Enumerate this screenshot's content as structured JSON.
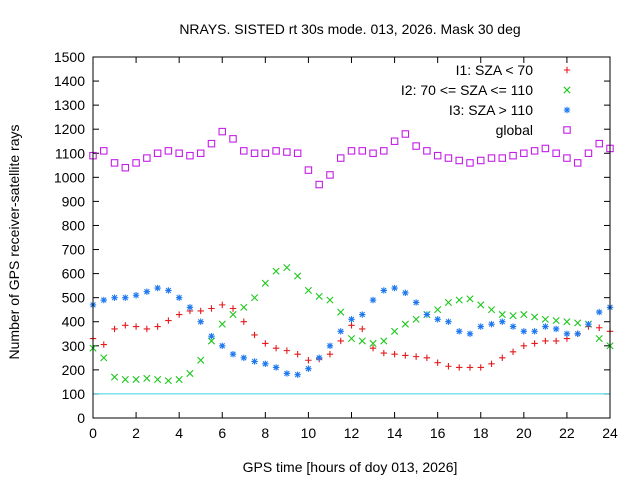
{
  "chart_data": {
    "type": "scatter",
    "title": "NRAYS. SISTED rt 30s mode. 013, 2026. Mask 30 deg",
    "xlabel": "GPS time [hours of doy 013, 2026]",
    "ylabel": "Number of GPS receiver-satellite rays",
    "xlim": [
      0,
      24
    ],
    "ylim": [
      0,
      1500
    ],
    "xticks": [
      0,
      2,
      4,
      6,
      8,
      10,
      12,
      14,
      16,
      18,
      20,
      22,
      24
    ],
    "yticks": [
      0,
      100,
      200,
      300,
      400,
      500,
      600,
      700,
      800,
      900,
      1000,
      1100,
      1200,
      1300,
      1400,
      1500
    ],
    "grid": false,
    "legend_position": "top-right",
    "reference_line": {
      "y": 100,
      "color": "#3fd0e0"
    },
    "series": [
      {
        "name": "I1: SZA < 70",
        "marker": "+",
        "color": "#e41a1c",
        "x": [
          0,
          0.5,
          1,
          1.5,
          2,
          2.5,
          3,
          3.5,
          4,
          4.5,
          5,
          5.5,
          6,
          6.5,
          7,
          7.5,
          8,
          8.5,
          9,
          9.5,
          10,
          10.5,
          11,
          11.5,
          12,
          12.5,
          13,
          13.5,
          14,
          14.5,
          15,
          15.5,
          16,
          16.5,
          17,
          17.5,
          18,
          18.5,
          19,
          19.5,
          20,
          20.5,
          21,
          21.5,
          22,
          22.5,
          23,
          23.5,
          24
        ],
        "y": [
          330,
          305,
          370,
          385,
          380,
          370,
          380,
          405,
          430,
          445,
          445,
          455,
          470,
          455,
          400,
          345,
          310,
          290,
          280,
          265,
          240,
          245,
          265,
          320,
          385,
          370,
          290,
          270,
          265,
          260,
          255,
          250,
          230,
          215,
          210,
          210,
          210,
          225,
          250,
          275,
          300,
          310,
          320,
          320,
          330,
          350,
          380,
          375,
          360
        ]
      },
      {
        "name": "I2: 70 <= SZA <= 110",
        "marker": "x",
        "color": "#1ec81e",
        "x": [
          0,
          0.5,
          1,
          1.5,
          2,
          2.5,
          3,
          3.5,
          4,
          4.5,
          5,
          5.5,
          6,
          6.5,
          7,
          7.5,
          8,
          8.5,
          9,
          9.5,
          10,
          10.5,
          11,
          11.5,
          12,
          12.5,
          13,
          13.5,
          14,
          14.5,
          15,
          15.5,
          16,
          16.5,
          17,
          17.5,
          18,
          18.5,
          19,
          19.5,
          20,
          20.5,
          21,
          21.5,
          22,
          22.5,
          23,
          23.5,
          24
        ],
        "y": [
          290,
          250,
          170,
          160,
          160,
          165,
          160,
          155,
          160,
          185,
          240,
          320,
          390,
          430,
          460,
          500,
          560,
          610,
          625,
          590,
          530,
          505,
          490,
          440,
          330,
          320,
          310,
          320,
          360,
          390,
          410,
          430,
          450,
          480,
          490,
          495,
          470,
          450,
          430,
          425,
          430,
          420,
          410,
          405,
          400,
          395,
          390,
          330,
          300
        ]
      },
      {
        "name": "I3: SZA > 110",
        "marker": "*",
        "color": "#1e78f0",
        "x": [
          0,
          0.5,
          1,
          1.5,
          2,
          2.5,
          3,
          3.5,
          4,
          4.5,
          5,
          5.5,
          6,
          6.5,
          7,
          7.5,
          8,
          8.5,
          9,
          9.5,
          10,
          10.5,
          11,
          11.5,
          12,
          12.5,
          13,
          13.5,
          14,
          14.5,
          15,
          15.5,
          16,
          16.5,
          17,
          17.5,
          18,
          18.5,
          19,
          19.5,
          20,
          20.5,
          21,
          21.5,
          22,
          22.5,
          23,
          23.5,
          24
        ],
        "y": [
          470,
          490,
          500,
          500,
          510,
          525,
          540,
          530,
          500,
          460,
          400,
          340,
          300,
          265,
          250,
          235,
          225,
          210,
          185,
          180,
          205,
          250,
          300,
          360,
          410,
          430,
          490,
          530,
          540,
          520,
          480,
          430,
          410,
          400,
          360,
          350,
          380,
          390,
          400,
          380,
          360,
          360,
          380,
          370,
          350,
          350,
          390,
          440,
          460
        ]
      },
      {
        "name": "global",
        "marker": "square",
        "color": "#c31ee6",
        "x": [
          0,
          0.5,
          1,
          1.5,
          2,
          2.5,
          3,
          3.5,
          4,
          4.5,
          5,
          5.5,
          6,
          6.5,
          7,
          7.5,
          8,
          8.5,
          9,
          9.5,
          10,
          10.5,
          11,
          11.5,
          12,
          12.5,
          13,
          13.5,
          14,
          14.5,
          15,
          15.5,
          16,
          16.5,
          17,
          17.5,
          18,
          18.5,
          19,
          19.5,
          20,
          20.5,
          21,
          21.5,
          22,
          22.5,
          23,
          23.5,
          24
        ],
        "y": [
          1090,
          1110,
          1060,
          1040,
          1060,
          1080,
          1100,
          1110,
          1100,
          1090,
          1100,
          1140,
          1190,
          1160,
          1110,
          1100,
          1100,
          1110,
          1105,
          1100,
          1030,
          970,
          1010,
          1080,
          1110,
          1110,
          1100,
          1110,
          1150,
          1180,
          1130,
          1110,
          1090,
          1080,
          1070,
          1060,
          1070,
          1080,
          1080,
          1090,
          1100,
          1110,
          1120,
          1100,
          1080,
          1060,
          1100,
          1140,
          1120
        ]
      }
    ]
  }
}
